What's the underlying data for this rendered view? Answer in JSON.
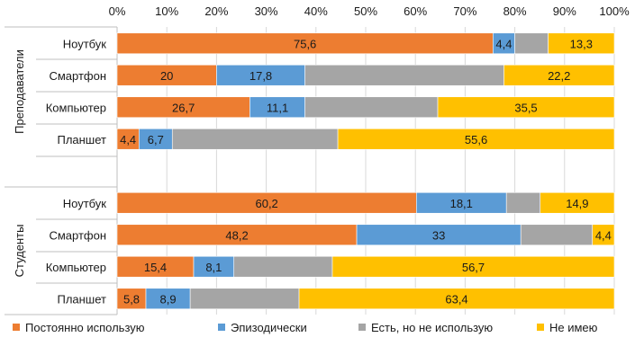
{
  "chart_data": {
    "type": "bar",
    "orientation": "horizontal",
    "stacked": "percent",
    "xlim": [
      0,
      100
    ],
    "xticks": [
      "0%",
      "10%",
      "20%",
      "30%",
      "40%",
      "50%",
      "60%",
      "70%",
      "80%",
      "90%",
      "100%"
    ],
    "x_axis_position": "top",
    "grid": true,
    "legend_position": "bottom",
    "series": [
      {
        "name": "Постоянно использую",
        "color": "#ED7D31"
      },
      {
        "name": "Эпизодически",
        "color": "#5B9BD5"
      },
      {
        "name": "Есть, но не использую",
        "color": "#A5A5A5"
      },
      {
        "name": "Не имею",
        "color": "#FFC000"
      }
    ],
    "groups": [
      {
        "name": "Преподаватели",
        "rows": [
          {
            "category": "Ноутбук",
            "values": [
              75.6,
              4.4,
              6.7,
              13.3
            ],
            "labels": [
              "75,6",
              "4,4",
              "",
              "13,3"
            ]
          },
          {
            "category": "Смартфон",
            "values": [
              20,
              17.8,
              40,
              22.2
            ],
            "labels": [
              "20",
              "17,8",
              "",
              "22,2"
            ]
          },
          {
            "category": "Компьютер",
            "values": [
              26.7,
              11.1,
              26.7,
              35.5
            ],
            "labels": [
              "26,7",
              "11,1",
              "",
              "35,5"
            ]
          },
          {
            "category": "Планшет",
            "values": [
              4.4,
              6.7,
              33.3,
              55.6
            ],
            "labels": [
              "4,4",
              "6,7",
              "",
              "55,6"
            ]
          }
        ]
      },
      {
        "name": "Студенты",
        "rows": [
          {
            "category": "Ноутбук",
            "values": [
              60.2,
              18.1,
              6.8,
              14.9
            ],
            "labels": [
              "60,2",
              "18,1",
              "",
              "14,9"
            ]
          },
          {
            "category": "Смартфон",
            "values": [
              48.2,
              33,
              14.4,
              4.4
            ],
            "labels": [
              "48,2",
              "33",
              "",
              "4,4"
            ]
          },
          {
            "category": "Компьютер",
            "values": [
              15.4,
              8.1,
              19.8,
              56.7
            ],
            "labels": [
              "15,4",
              "8,1",
              "",
              "56,7"
            ]
          },
          {
            "category": "Планшет",
            "values": [
              5.8,
              8.9,
              21.9,
              63.4
            ],
            "labels": [
              "5,8",
              "8,9",
              "",
              "63,4"
            ]
          }
        ]
      }
    ]
  }
}
